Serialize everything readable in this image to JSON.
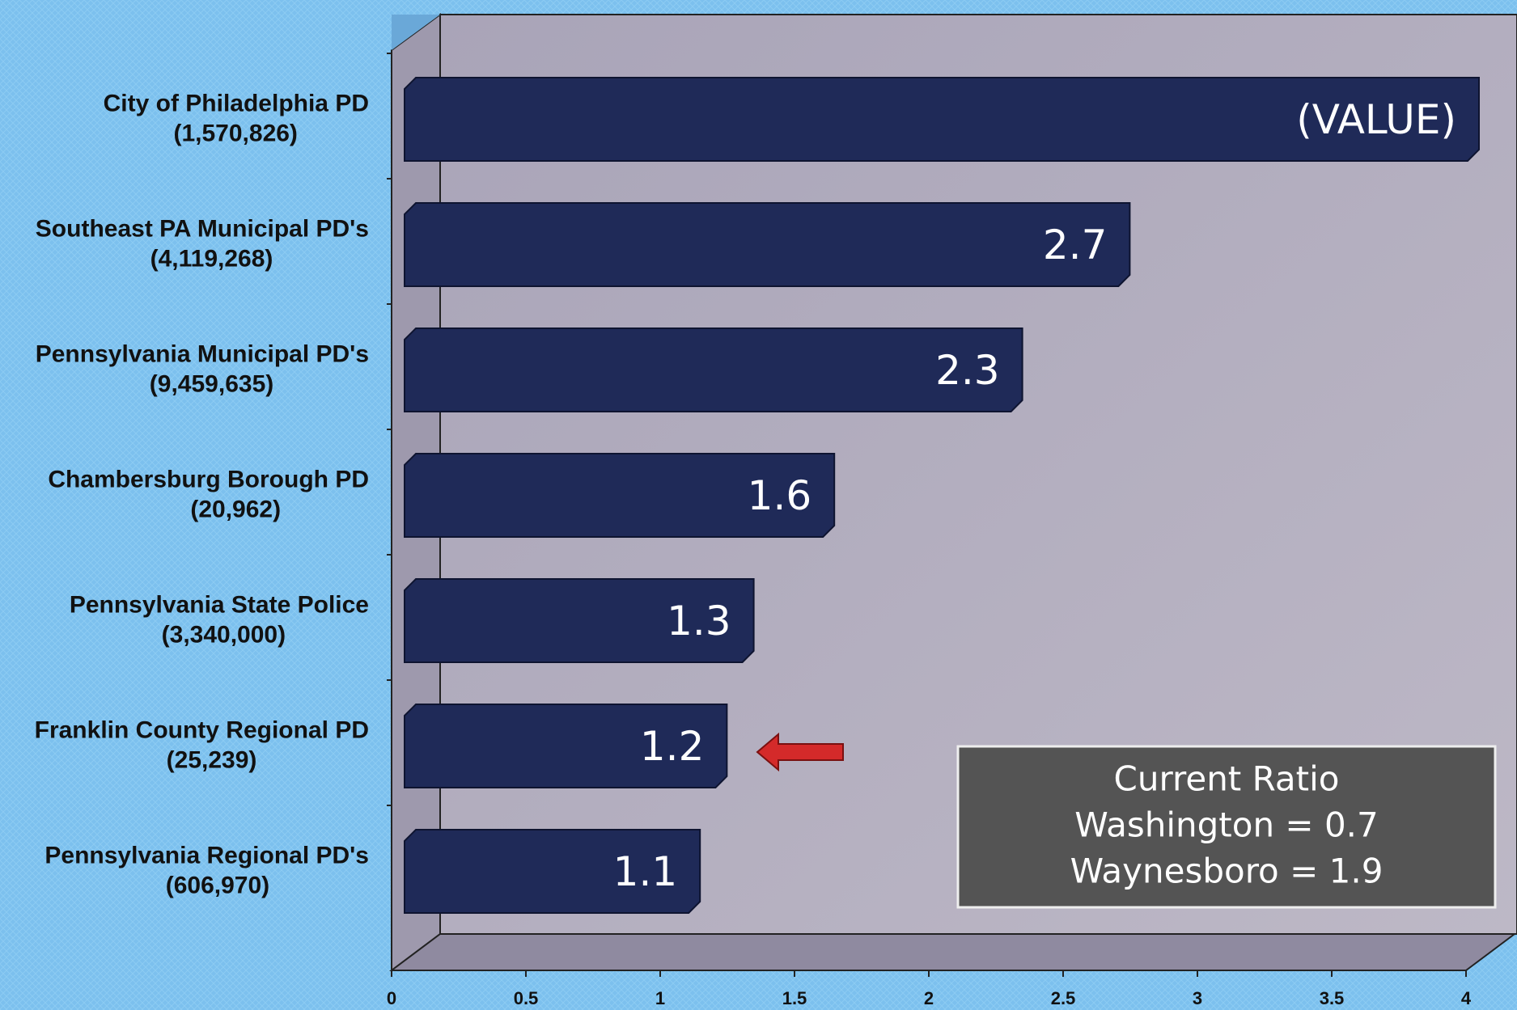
{
  "chart_data": {
    "type": "bar",
    "orientation": "horizontal",
    "categories": [
      "City of Philadelphia PD",
      "Southeast PA Municipal PD's",
      "Pennsylvania Municipal PD's",
      "Chambersburg Borough PD",
      "Pennsylvania State Police",
      "Franklin County Regional PD",
      "Pennsylvania Regional PD's"
    ],
    "category_notes": [
      "(1,570,826)",
      "(4,119,268)",
      "(9,459,635)",
      "(20,962)",
      "(3,340,000)",
      "(25,239)",
      "(606,970)"
    ],
    "values": [
      4.0,
      2.7,
      2.3,
      1.6,
      1.3,
      1.2,
      1.1
    ],
    "value_labels": [
      "(VALUE)",
      "2.7",
      "2.3",
      "1.6",
      "1.3",
      "1.2",
      "1.1"
    ],
    "color": "#1f2a58",
    "xlim": [
      0,
      4
    ],
    "xticks": [
      0,
      0.5,
      1,
      1.5,
      2,
      2.5,
      3,
      3.5,
      4
    ],
    "annotation": [
      "Current Ratio",
      "Washington = 0.7",
      "Waynesboro = 1.9"
    ]
  }
}
